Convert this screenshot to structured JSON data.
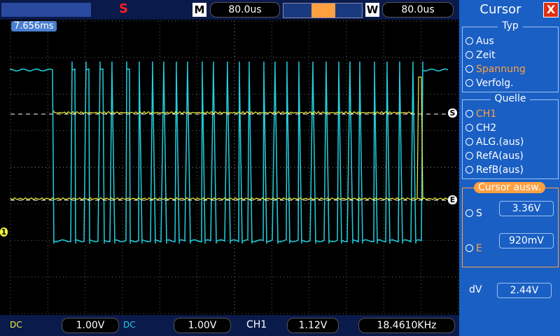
{
  "toolbar": {
    "run_state": "S",
    "main_label": "M",
    "main_time": "80.0us",
    "window_label": "W",
    "window_time": "80.0us"
  },
  "screen": {
    "trigger_position": "7.656ms",
    "cursor_s_marker": "S",
    "cursor_e_marker": "E",
    "channel_marker": "1"
  },
  "panel": {
    "title": "Cursor",
    "close": "X",
    "type_group": {
      "title": "Typ",
      "options": [
        "Aus",
        "Zeit",
        "Spannung",
        "Verfolg."
      ]
    },
    "source_group": {
      "title": "Quelle",
      "options": [
        "CH1",
        "CH2",
        "ALG.(aus)",
        "RefA(aus)",
        "RefB(aus)"
      ]
    },
    "select_title": "Cursor  ausw.",
    "s_label": "S",
    "s_value": "3.36V",
    "e_label": "E",
    "e_value": "920mV",
    "dv_label": "dV",
    "dv_value": "2.44V"
  },
  "statusbar": {
    "ch1_coupling": "DC",
    "ch1_scale": "1.00V",
    "ch2_coupling": "DC",
    "ch2_scale": "1.00V",
    "trigger_source": "CH1",
    "trigger_level": "1.12V",
    "frequency": "18.4610KHz"
  }
}
